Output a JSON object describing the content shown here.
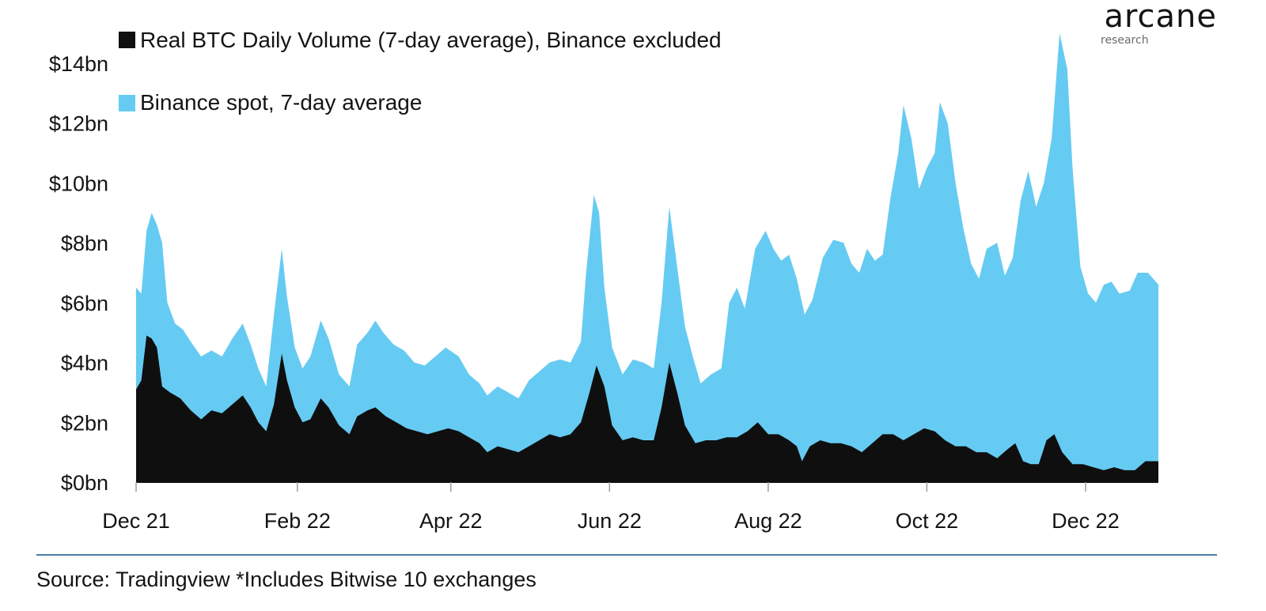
{
  "brand": {
    "name": "arcane",
    "sub": "research"
  },
  "source_text": "Source: Tradingview *Includes Bitwise 10 exchanges",
  "colors": {
    "binance": "#66cbf2",
    "real": "#0f0f0f",
    "divider": "#4a7ea8"
  },
  "chart_data": {
    "type": "area",
    "title": "",
    "xlabel": "",
    "ylabel": "",
    "ylim": [
      0,
      14
    ],
    "yticks": [
      0,
      2,
      4,
      6,
      8,
      10,
      12,
      14
    ],
    "ytick_labels": [
      "$0bn",
      "$2bn",
      "$4bn",
      "$6bn",
      "$8bn",
      "$10bn",
      "$12bn",
      "$14bn"
    ],
    "xlim": [
      "2021-12-01",
      "2022-12-29"
    ],
    "xticks": [
      "2021-12-01",
      "2022-02-01",
      "2022-04-01",
      "2022-06-01",
      "2022-08-01",
      "2022-10-01",
      "2022-12-01"
    ],
    "xtick_labels": [
      "Dec 21",
      "Feb 22",
      "Apr 22",
      "Jun 22",
      "Aug 22",
      "Oct 22",
      "Dec 22"
    ],
    "legend": "top-left",
    "grid": false,
    "series": [
      {
        "name": "Real BTC Daily Volume (7-day average), Binance excluded",
        "color": "#0f0f0f",
        "points": [
          [
            "2021-12-01",
            3.1
          ],
          [
            "2021-12-03",
            3.4
          ],
          [
            "2021-12-05",
            4.9
          ],
          [
            "2021-12-07",
            4.8
          ],
          [
            "2021-12-09",
            4.5
          ],
          [
            "2021-12-11",
            3.2
          ],
          [
            "2021-12-14",
            3.0
          ],
          [
            "2021-12-18",
            2.8
          ],
          [
            "2021-12-22",
            2.4
          ],
          [
            "2021-12-26",
            2.1
          ],
          [
            "2021-12-30",
            2.4
          ],
          [
            "2022-01-03",
            2.3
          ],
          [
            "2022-01-07",
            2.6
          ],
          [
            "2022-01-11",
            2.9
          ],
          [
            "2022-01-14",
            2.5
          ],
          [
            "2022-01-17",
            2.0
          ],
          [
            "2022-01-20",
            1.7
          ],
          [
            "2022-01-23",
            2.6
          ],
          [
            "2022-01-26",
            4.3
          ],
          [
            "2022-01-28",
            3.4
          ],
          [
            "2022-01-31",
            2.5
          ],
          [
            "2022-02-03",
            2.0
          ],
          [
            "2022-02-06",
            2.1
          ],
          [
            "2022-02-10",
            2.8
          ],
          [
            "2022-02-13",
            2.5
          ],
          [
            "2022-02-17",
            1.9
          ],
          [
            "2022-02-21",
            1.6
          ],
          [
            "2022-02-24",
            2.2
          ],
          [
            "2022-02-28",
            2.4
          ],
          [
            "2022-03-03",
            2.5
          ],
          [
            "2022-03-07",
            2.2
          ],
          [
            "2022-03-11",
            2.0
          ],
          [
            "2022-03-15",
            1.8
          ],
          [
            "2022-03-19",
            1.7
          ],
          [
            "2022-03-23",
            1.6
          ],
          [
            "2022-03-27",
            1.7
          ],
          [
            "2022-03-31",
            1.8
          ],
          [
            "2022-04-04",
            1.7
          ],
          [
            "2022-04-08",
            1.5
          ],
          [
            "2022-04-12",
            1.3
          ],
          [
            "2022-04-15",
            1.0
          ],
          [
            "2022-04-19",
            1.2
          ],
          [
            "2022-04-23",
            1.1
          ],
          [
            "2022-04-27",
            1.0
          ],
          [
            "2022-05-01",
            1.2
          ],
          [
            "2022-05-05",
            1.4
          ],
          [
            "2022-05-09",
            1.6
          ],
          [
            "2022-05-13",
            1.5
          ],
          [
            "2022-05-17",
            1.6
          ],
          [
            "2022-05-21",
            2.0
          ],
          [
            "2022-05-24",
            2.9
          ],
          [
            "2022-05-27",
            3.9
          ],
          [
            "2022-05-30",
            3.2
          ],
          [
            "2022-06-02",
            1.9
          ],
          [
            "2022-06-06",
            1.4
          ],
          [
            "2022-06-10",
            1.5
          ],
          [
            "2022-06-14",
            1.4
          ],
          [
            "2022-06-18",
            1.4
          ],
          [
            "2022-06-21",
            2.5
          ],
          [
            "2022-06-24",
            4.0
          ],
          [
            "2022-06-27",
            3.0
          ],
          [
            "2022-06-30",
            1.9
          ],
          [
            "2022-07-04",
            1.3
          ],
          [
            "2022-07-08",
            1.4
          ],
          [
            "2022-07-12",
            1.4
          ],
          [
            "2022-07-16",
            1.5
          ],
          [
            "2022-07-20",
            1.5
          ],
          [
            "2022-07-24",
            1.7
          ],
          [
            "2022-07-28",
            2.0
          ],
          [
            "2022-08-01",
            1.6
          ],
          [
            "2022-08-05",
            1.6
          ],
          [
            "2022-08-09",
            1.4
          ],
          [
            "2022-08-12",
            1.2
          ],
          [
            "2022-08-14",
            0.7
          ],
          [
            "2022-08-17",
            1.2
          ],
          [
            "2022-08-21",
            1.4
          ],
          [
            "2022-08-25",
            1.3
          ],
          [
            "2022-08-29",
            1.3
          ],
          [
            "2022-09-02",
            1.2
          ],
          [
            "2022-09-06",
            1.0
          ],
          [
            "2022-09-10",
            1.3
          ],
          [
            "2022-09-14",
            1.6
          ],
          [
            "2022-09-18",
            1.6
          ],
          [
            "2022-09-22",
            1.4
          ],
          [
            "2022-09-26",
            1.6
          ],
          [
            "2022-09-30",
            1.8
          ],
          [
            "2022-10-04",
            1.7
          ],
          [
            "2022-10-08",
            1.4
          ],
          [
            "2022-10-12",
            1.2
          ],
          [
            "2022-10-16",
            1.2
          ],
          [
            "2022-10-20",
            1.0
          ],
          [
            "2022-10-24",
            1.0
          ],
          [
            "2022-10-28",
            0.8
          ],
          [
            "2022-11-01",
            1.1
          ],
          [
            "2022-11-04",
            1.3
          ],
          [
            "2022-11-07",
            0.7
          ],
          [
            "2022-11-10",
            0.6
          ],
          [
            "2022-11-13",
            0.6
          ],
          [
            "2022-11-16",
            1.4
          ],
          [
            "2022-11-19",
            1.6
          ],
          [
            "2022-11-22",
            1.0
          ],
          [
            "2022-11-26",
            0.6
          ],
          [
            "2022-11-30",
            0.6
          ],
          [
            "2022-12-04",
            0.5
          ],
          [
            "2022-12-08",
            0.4
          ],
          [
            "2022-12-12",
            0.5
          ],
          [
            "2022-12-16",
            0.4
          ],
          [
            "2022-12-20",
            0.4
          ],
          [
            "2022-12-24",
            0.7
          ],
          [
            "2022-12-29",
            0.7
          ]
        ]
      },
      {
        "name": "Binance spot, 7-day average",
        "color": "#66cbf2",
        "points": [
          [
            "2021-12-01",
            6.5
          ],
          [
            "2021-12-03",
            6.3
          ],
          [
            "2021-12-05",
            8.4
          ],
          [
            "2021-12-07",
            9.0
          ],
          [
            "2021-12-09",
            8.6
          ],
          [
            "2021-12-11",
            8.0
          ],
          [
            "2021-12-13",
            6.0
          ],
          [
            "2021-12-16",
            5.3
          ],
          [
            "2021-12-19",
            5.1
          ],
          [
            "2021-12-22",
            4.7
          ],
          [
            "2021-12-26",
            4.2
          ],
          [
            "2021-12-30",
            4.4
          ],
          [
            "2022-01-03",
            4.2
          ],
          [
            "2022-01-07",
            4.8
          ],
          [
            "2022-01-11",
            5.3
          ],
          [
            "2022-01-14",
            4.6
          ],
          [
            "2022-01-17",
            3.8
          ],
          [
            "2022-01-20",
            3.2
          ],
          [
            "2022-01-23",
            5.6
          ],
          [
            "2022-01-26",
            7.8
          ],
          [
            "2022-01-28",
            6.2
          ],
          [
            "2022-01-31",
            4.5
          ],
          [
            "2022-02-03",
            3.8
          ],
          [
            "2022-02-06",
            4.2
          ],
          [
            "2022-02-10",
            5.4
          ],
          [
            "2022-02-13",
            4.8
          ],
          [
            "2022-02-17",
            3.6
          ],
          [
            "2022-02-21",
            3.2
          ],
          [
            "2022-02-24",
            4.6
          ],
          [
            "2022-02-28",
            5.0
          ],
          [
            "2022-03-03",
            5.4
          ],
          [
            "2022-03-06",
            5.0
          ],
          [
            "2022-03-10",
            4.6
          ],
          [
            "2022-03-14",
            4.4
          ],
          [
            "2022-03-18",
            4.0
          ],
          [
            "2022-03-22",
            3.9
          ],
          [
            "2022-03-26",
            4.2
          ],
          [
            "2022-03-30",
            4.5
          ],
          [
            "2022-04-04",
            4.2
          ],
          [
            "2022-04-08",
            3.6
          ],
          [
            "2022-04-12",
            3.3
          ],
          [
            "2022-04-15",
            2.9
          ],
          [
            "2022-04-19",
            3.2
          ],
          [
            "2022-04-23",
            3.0
          ],
          [
            "2022-04-27",
            2.8
          ],
          [
            "2022-05-01",
            3.4
          ],
          [
            "2022-05-05",
            3.7
          ],
          [
            "2022-05-09",
            4.0
          ],
          [
            "2022-05-13",
            4.1
          ],
          [
            "2022-05-17",
            4.0
          ],
          [
            "2022-05-21",
            4.7
          ],
          [
            "2022-05-23",
            7.0
          ],
          [
            "2022-05-26",
            9.6
          ],
          [
            "2022-05-28",
            9.0
          ],
          [
            "2022-05-30",
            6.5
          ],
          [
            "2022-06-02",
            4.5
          ],
          [
            "2022-06-06",
            3.6
          ],
          [
            "2022-06-10",
            4.1
          ],
          [
            "2022-06-14",
            4.0
          ],
          [
            "2022-06-18",
            3.8
          ],
          [
            "2022-06-21",
            6.0
          ],
          [
            "2022-06-24",
            9.2
          ],
          [
            "2022-06-27",
            7.2
          ],
          [
            "2022-06-30",
            5.2
          ],
          [
            "2022-07-03",
            4.2
          ],
          [
            "2022-07-06",
            3.3
          ],
          [
            "2022-07-10",
            3.6
          ],
          [
            "2022-07-14",
            3.8
          ],
          [
            "2022-07-17",
            6.0
          ],
          [
            "2022-07-20",
            6.5
          ],
          [
            "2022-07-23",
            5.8
          ],
          [
            "2022-07-27",
            7.8
          ],
          [
            "2022-07-31",
            8.4
          ],
          [
            "2022-08-03",
            7.8
          ],
          [
            "2022-08-06",
            7.4
          ],
          [
            "2022-08-09",
            7.6
          ],
          [
            "2022-08-12",
            6.8
          ],
          [
            "2022-08-15",
            5.6
          ],
          [
            "2022-08-18",
            6.1
          ],
          [
            "2022-08-22",
            7.5
          ],
          [
            "2022-08-26",
            8.1
          ],
          [
            "2022-08-30",
            8.0
          ],
          [
            "2022-09-02",
            7.3
          ],
          [
            "2022-09-05",
            7.0
          ],
          [
            "2022-09-08",
            7.8
          ],
          [
            "2022-09-11",
            7.4
          ],
          [
            "2022-09-14",
            7.6
          ],
          [
            "2022-09-17",
            9.5
          ],
          [
            "2022-09-20",
            11.0
          ],
          [
            "2022-09-22",
            12.6
          ],
          [
            "2022-09-25",
            11.5
          ],
          [
            "2022-09-28",
            9.8
          ],
          [
            "2022-10-01",
            10.5
          ],
          [
            "2022-10-04",
            11.0
          ],
          [
            "2022-10-06",
            12.7
          ],
          [
            "2022-10-09",
            12.0
          ],
          [
            "2022-10-12",
            10.0
          ],
          [
            "2022-10-15",
            8.5
          ],
          [
            "2022-10-18",
            7.3
          ],
          [
            "2022-10-21",
            6.8
          ],
          [
            "2022-10-24",
            7.8
          ],
          [
            "2022-10-28",
            8.0
          ],
          [
            "2022-10-31",
            6.9
          ],
          [
            "2022-11-03",
            7.5
          ],
          [
            "2022-11-06",
            9.4
          ],
          [
            "2022-11-09",
            10.4
          ],
          [
            "2022-11-12",
            9.2
          ],
          [
            "2022-11-15",
            10.0
          ],
          [
            "2022-11-18",
            11.5
          ],
          [
            "2022-11-21",
            15.0
          ],
          [
            "2022-11-24",
            13.8
          ],
          [
            "2022-11-26",
            10.5
          ],
          [
            "2022-11-29",
            7.2
          ],
          [
            "2022-12-02",
            6.3
          ],
          [
            "2022-12-05",
            6.0
          ],
          [
            "2022-12-08",
            6.6
          ],
          [
            "2022-12-11",
            6.7
          ],
          [
            "2022-12-14",
            6.3
          ],
          [
            "2022-12-18",
            6.4
          ],
          [
            "2022-12-21",
            7.0
          ],
          [
            "2022-12-25",
            7.0
          ],
          [
            "2022-12-29",
            6.6
          ]
        ]
      }
    ]
  }
}
